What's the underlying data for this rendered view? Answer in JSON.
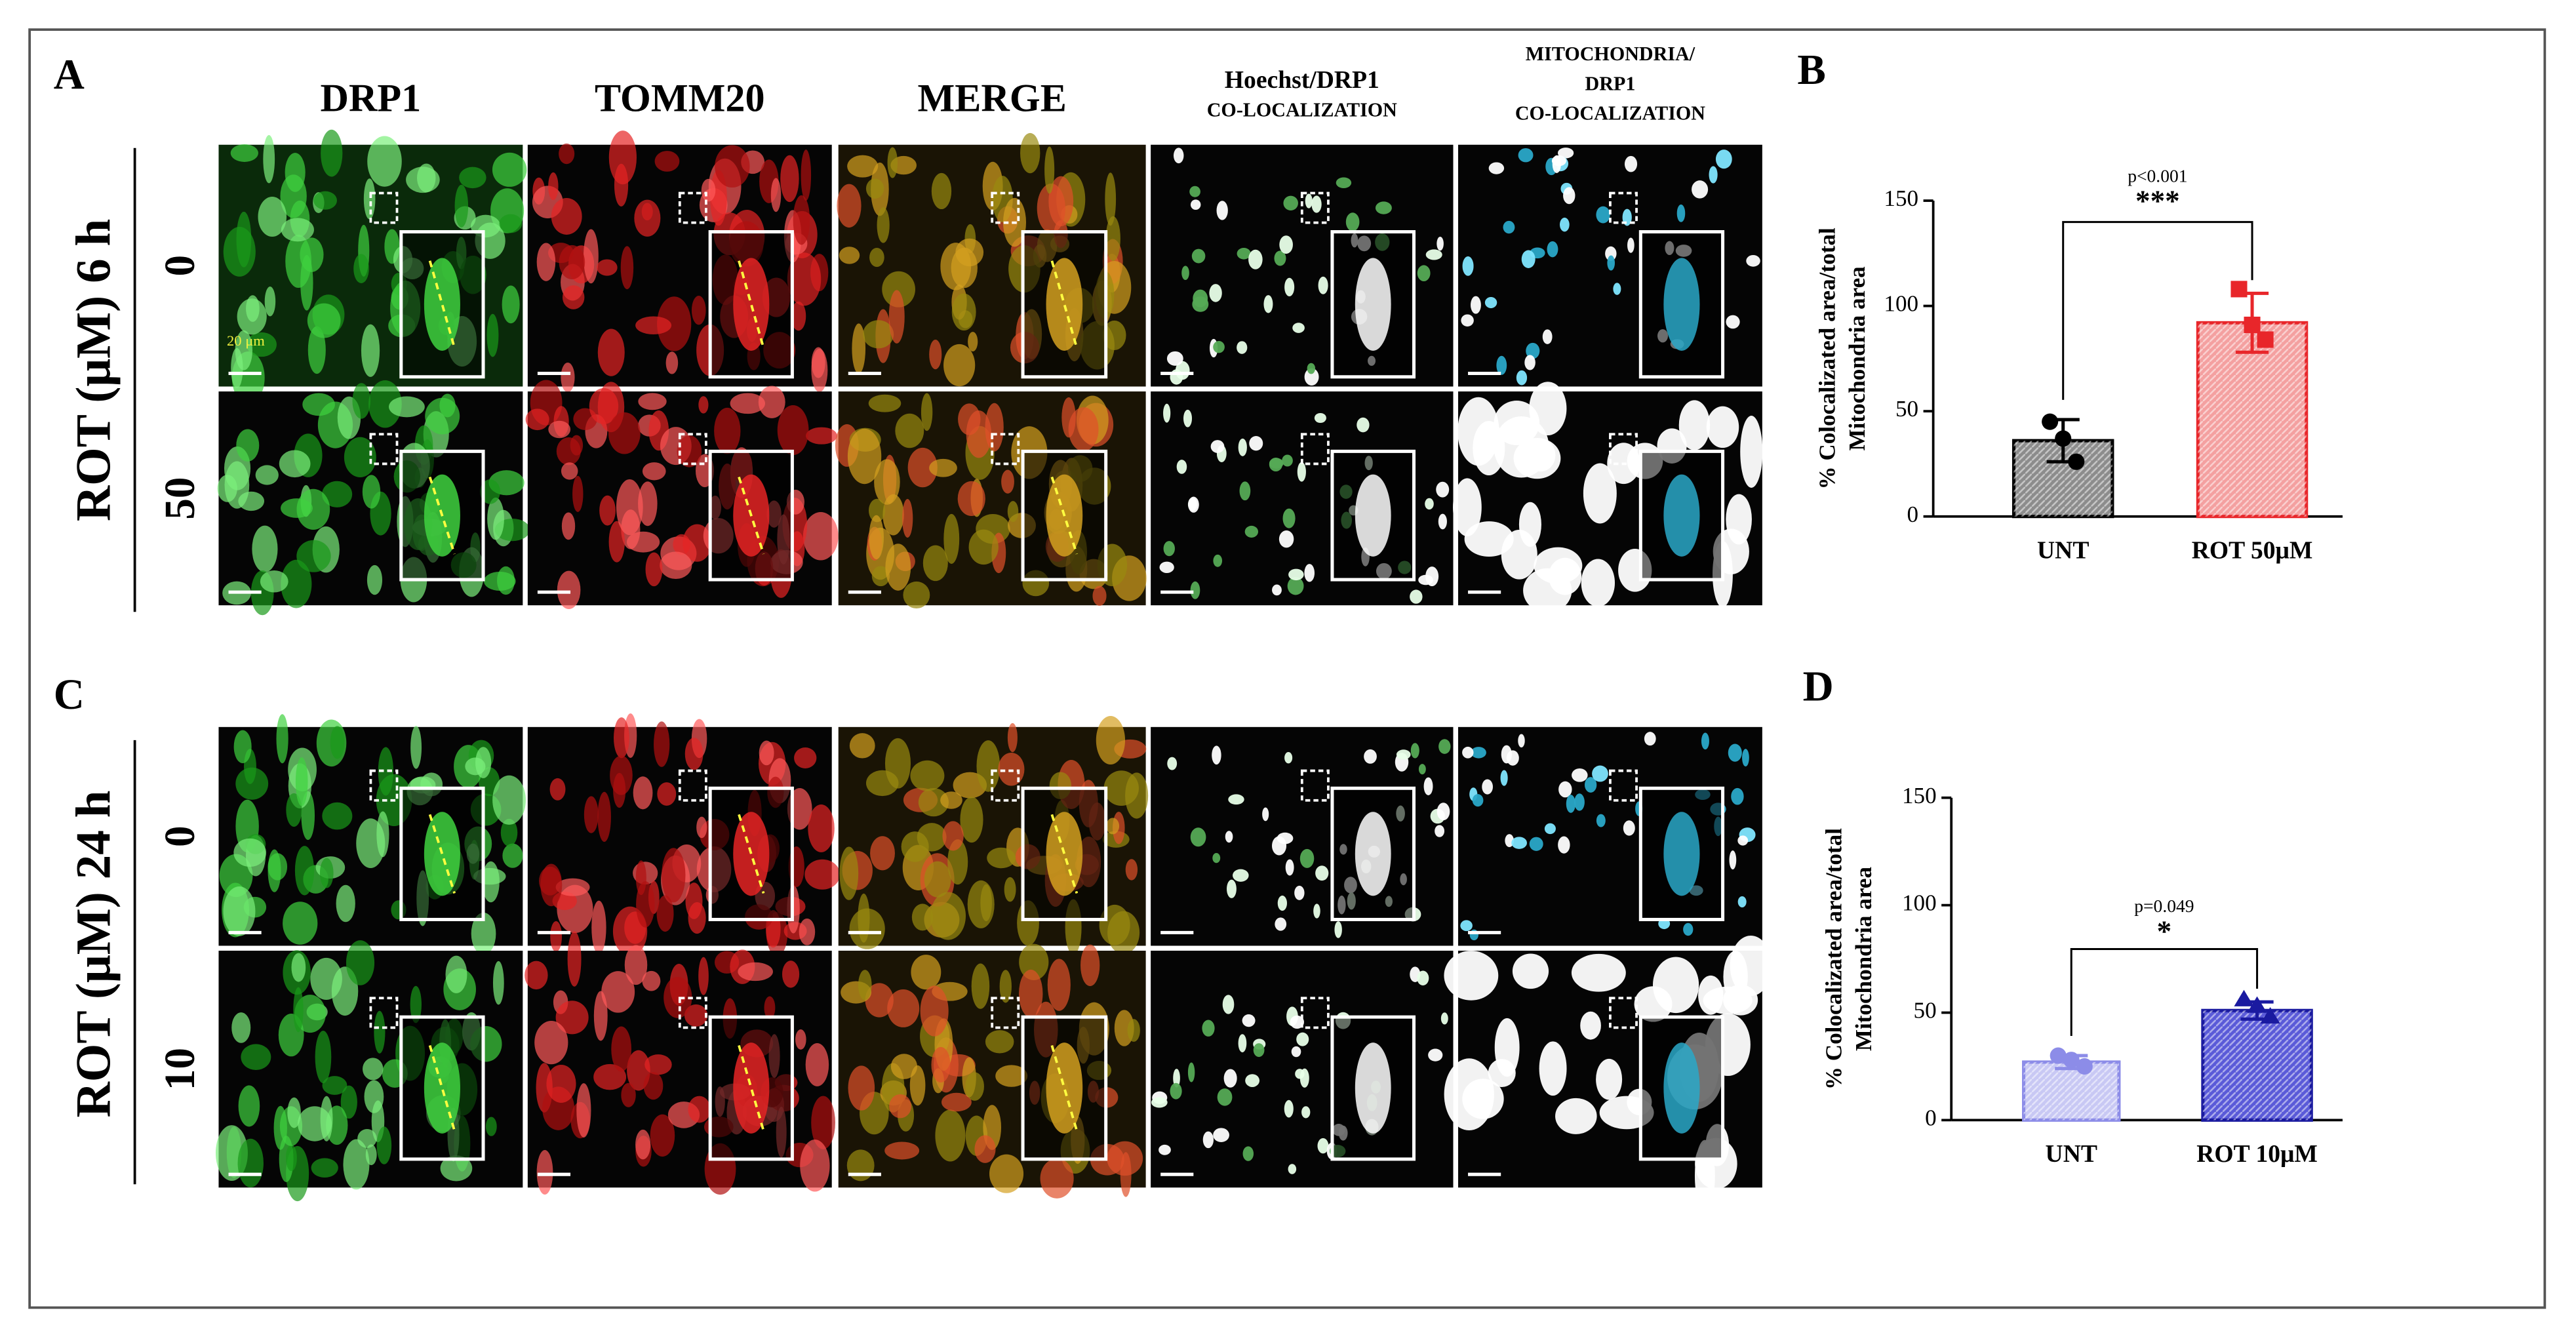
{
  "panels": {
    "a": "A",
    "b": "B",
    "c": "C",
    "d": "D"
  },
  "columns": [
    [
      "DRP1"
    ],
    [
      "TOMM20"
    ],
    [
      "MERGE"
    ],
    [
      "Hoechst/DRP1",
      "CO-LOCALIZATION"
    ],
    [
      "MITOCHONDRIA/",
      "DRP1",
      "CO-LOCALIZATION"
    ]
  ],
  "row_groups": [
    {
      "label": "ROT (μM)  6 h",
      "rows": [
        "0",
        "50"
      ]
    },
    {
      "label": "ROT (μM)  24 h",
      "rows": [
        "0",
        "10"
      ]
    }
  ],
  "scale_bar": "20 μm",
  "chart_data": [
    {
      "type": "bar",
      "ylabel": [
        "% Colocalizated area/total",
        "Mitochondria area"
      ],
      "categories": [
        "UNT",
        "ROT 50μM"
      ],
      "values": [
        36,
        92
      ],
      "errors": [
        10,
        14
      ],
      "points": [
        [
          45,
          37,
          26
        ],
        [
          108,
          91,
          84
        ]
      ],
      "colors": [
        "#8c8c8c",
        "#f4a0a0"
      ],
      "edge_colors": [
        "#000000",
        "#e8262a"
      ],
      "ylim": [
        0,
        150
      ],
      "yticks": [
        0,
        50,
        100,
        150
      ],
      "annotation": {
        "p": "p<0.001",
        "stars": "***"
      }
    },
    {
      "type": "bar",
      "ylabel": [
        "% Colocalizated area/total",
        "Mitochondria area"
      ],
      "categories": [
        "UNT",
        "ROT 10μM"
      ],
      "values": [
        27,
        51
      ],
      "errors": [
        3,
        4
      ],
      "points": [
        [
          30,
          28,
          25
        ],
        [
          56,
          53,
          48
        ]
      ],
      "colors": [
        "#c8c8f4",
        "#5a5ad8"
      ],
      "edge_colors": [
        "#8c8ce8",
        "#1a1aa0"
      ],
      "ylim": [
        0,
        150
      ],
      "yticks": [
        0,
        50,
        100,
        150
      ],
      "annotation": {
        "p": "p=0.049",
        "stars": "*"
      }
    }
  ]
}
